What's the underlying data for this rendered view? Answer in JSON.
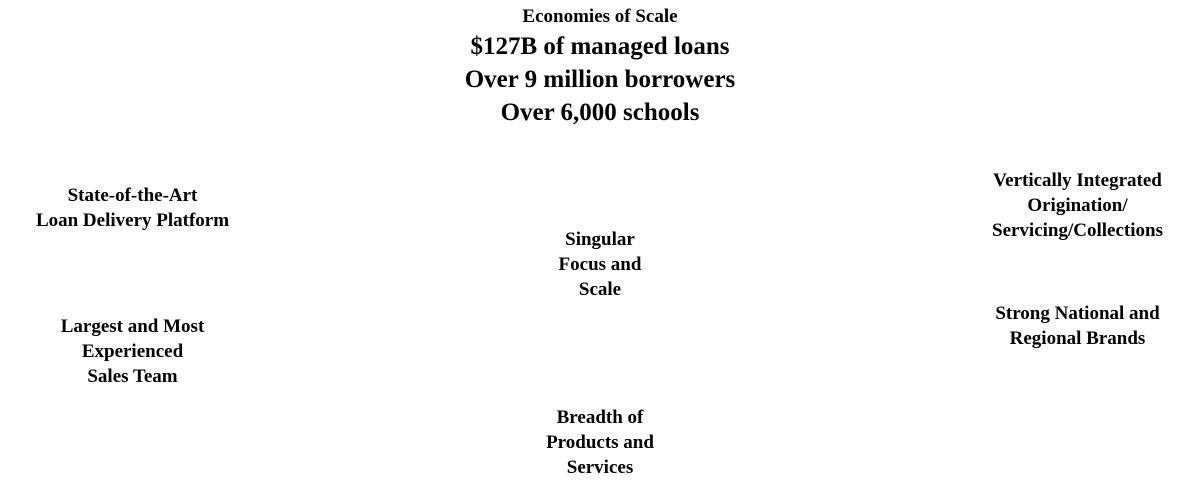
{
  "header": {
    "title": "Economies of Scale",
    "lines": [
      "$127B of managed loans",
      "Over 9 million borrowers",
      "Over 6,000 schools"
    ]
  },
  "left": {
    "top": [
      "State-of-the-Art",
      "Loan Delivery Platform"
    ],
    "bottom": [
      "Largest and Most",
      "Experienced",
      "Sales Team"
    ]
  },
  "center": {
    "middle": [
      "Singular",
      "Focus and",
      "Scale"
    ],
    "bottom": [
      "Breadth of",
      "Products and",
      "Services"
    ]
  },
  "right": {
    "top": [
      "Vertically Integrated",
      "Origination/",
      "Servicing/Collections"
    ],
    "bottom": [
      "Strong National and",
      "Regional Brands"
    ]
  }
}
